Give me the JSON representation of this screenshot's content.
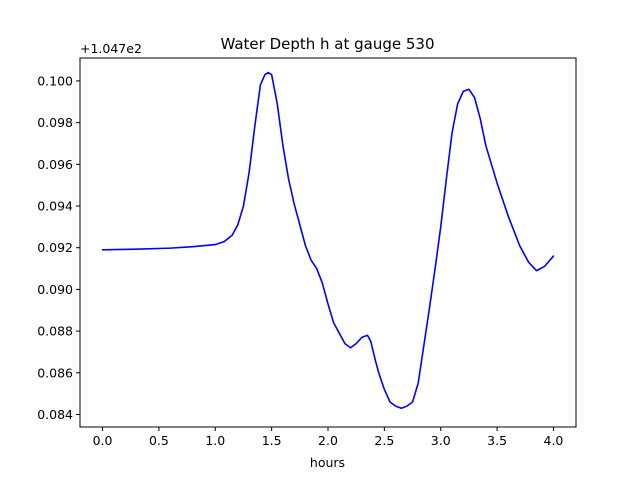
{
  "chart_data": {
    "type": "line",
    "title": "Water Depth h at gauge 530",
    "xlabel": "hours",
    "ylabel": "",
    "offset_label": "+1.047e2",
    "xlim": [
      -0.2,
      4.2
    ],
    "ylim": [
      0.0834,
      0.1011
    ],
    "x_ticks": [
      0.0,
      0.5,
      1.0,
      1.5,
      2.0,
      2.5,
      3.0,
      3.5,
      4.0
    ],
    "x_tick_labels": [
      "0.0",
      "0.5",
      "1.0",
      "1.5",
      "2.0",
      "2.5",
      "3.0",
      "3.5",
      "4.0"
    ],
    "y_ticks": [
      0.084,
      0.086,
      0.088,
      0.09,
      0.092,
      0.094,
      0.096,
      0.098,
      0.1
    ],
    "y_tick_labels": [
      "0.084",
      "0.086",
      "0.088",
      "0.090",
      "0.092",
      "0.094",
      "0.096",
      "0.098",
      "0.100"
    ],
    "grid": false,
    "legend": "none",
    "series": [
      {
        "color": "#0000ff",
        "x": [
          0.0,
          0.3,
          0.6,
          0.8,
          1.0,
          1.08,
          1.15,
          1.2,
          1.25,
          1.3,
          1.35,
          1.4,
          1.44,
          1.47,
          1.5,
          1.55,
          1.6,
          1.65,
          1.7,
          1.8,
          1.85,
          1.9,
          1.95,
          2.0,
          2.05,
          2.1,
          2.15,
          2.2,
          2.25,
          2.3,
          2.35,
          2.38,
          2.42,
          2.45,
          2.5,
          2.55,
          2.6,
          2.65,
          2.7,
          2.75,
          2.8,
          2.85,
          2.9,
          2.95,
          3.0,
          3.05,
          3.1,
          3.15,
          3.2,
          3.25,
          3.3,
          3.35,
          3.4,
          3.5,
          3.6,
          3.7,
          3.78,
          3.85,
          3.92,
          4.0
        ],
        "y": [
          0.0919,
          0.09193,
          0.09198,
          0.09205,
          0.09215,
          0.0923,
          0.0926,
          0.0931,
          0.094,
          0.0956,
          0.0978,
          0.0998,
          0.1003,
          0.1004,
          0.1003,
          0.0989,
          0.0969,
          0.0953,
          0.0941,
          0.0921,
          0.0914,
          0.091,
          0.0903,
          0.0893,
          0.0884,
          0.0879,
          0.0874,
          0.0872,
          0.0874,
          0.0877,
          0.0878,
          0.0875,
          0.0866,
          0.086,
          0.0852,
          0.0846,
          0.0844,
          0.0843,
          0.0844,
          0.0846,
          0.0855,
          0.0873,
          0.0891,
          0.091,
          0.093,
          0.0953,
          0.0975,
          0.0989,
          0.0995,
          0.0996,
          0.0992,
          0.0982,
          0.0969,
          0.0951,
          0.0935,
          0.0921,
          0.0913,
          0.0909,
          0.0911,
          0.0916
        ]
      }
    ]
  }
}
